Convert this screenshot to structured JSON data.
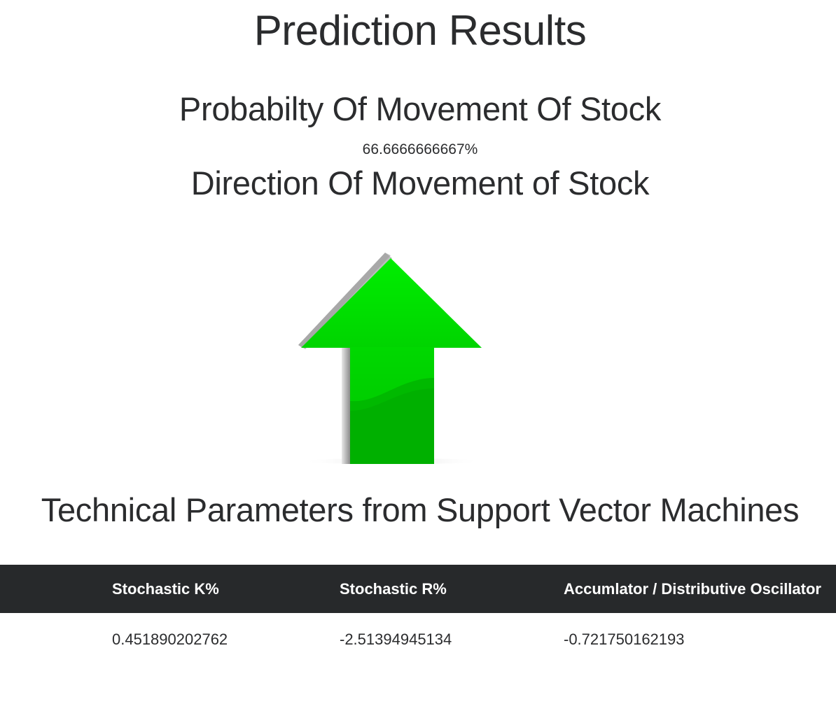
{
  "page": {
    "title": "Prediction Results"
  },
  "probability": {
    "heading": "Probabilty Of Movement Of Stock",
    "value": "66.6666666667%"
  },
  "direction": {
    "heading": "Direction Of Movement of Stock",
    "icon": "up-arrow-icon",
    "color": "#00cc00"
  },
  "technical": {
    "heading": "Technical Parameters from Support Vector Machines",
    "table": {
      "headers": [
        "",
        "Stochastic K%",
        "Stochastic R%",
        "Accumlator / Distributive Oscillator"
      ],
      "rows": [
        [
          "",
          "0.451890202762",
          "-2.51394945134",
          "-0.721750162193"
        ]
      ]
    }
  },
  "colors": {
    "table_header_bg": "#27292b",
    "text": "#2b2c2e",
    "arrow_green": "#00dd00"
  }
}
